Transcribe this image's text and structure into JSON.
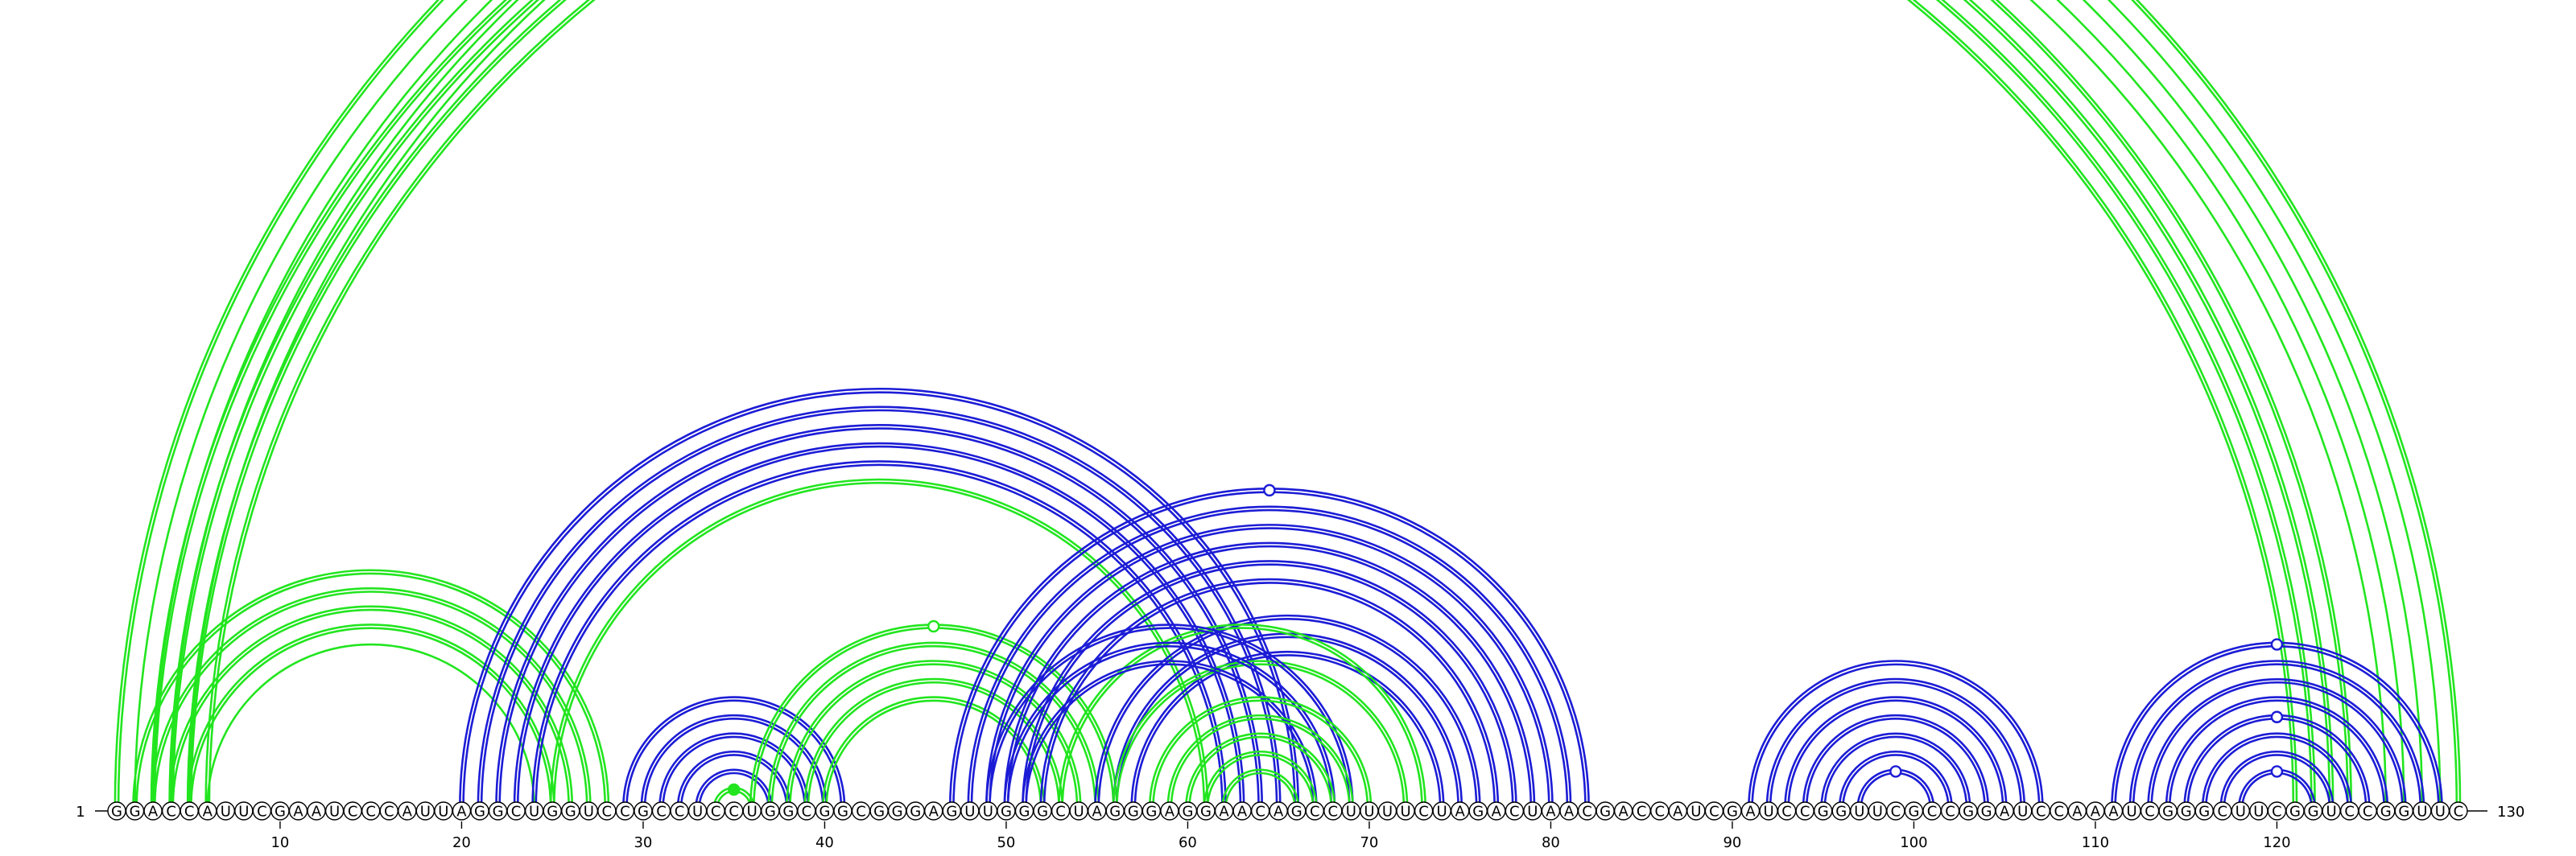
{
  "sequence": "GGACCAUUCGAAUCCCAUUAGGCUGGUCCGCCUCCUGGCGGCGGGAGUUGGGCUAGGGAGGAACAGCCUUUUCUAGACUAACGACCAUCGAUCCGGUUCGCCGGAUCCAAAUCGGGCUUCGGUCCGGUUC",
  "start_label": "1",
  "end_label": "130",
  "ticks": [
    "10",
    "20",
    "30",
    "40",
    "50",
    "60",
    "70",
    "80",
    "90",
    "100",
    "110",
    "120"
  ],
  "colors": {
    "green": "#22e51f",
    "blue": "#1c1cd6"
  },
  "arc_sets": [
    {
      "color": "green",
      "from": 1,
      "to": 130,
      "count": 2,
      "marker": "open"
    },
    {
      "color": "green",
      "from": 2,
      "to": 129,
      "count": 1
    },
    {
      "color": "green",
      "from": 3,
      "to": 128,
      "count": 1
    },
    {
      "color": "green",
      "from": 4,
      "to": 127,
      "count": 1
    },
    {
      "color": "green",
      "from": 5,
      "to": 126,
      "count": 1
    },
    {
      "color": "green",
      "from": 3,
      "to": 124,
      "count": 2
    },
    {
      "color": "green",
      "from": 4,
      "to": 123,
      "count": 2
    },
    {
      "color": "green",
      "from": 5,
      "to": 122,
      "count": 2
    },
    {
      "color": "green",
      "from": 6,
      "to": 121,
      "count": 2
    },
    {
      "color": "green",
      "from": 2,
      "to": 28,
      "count": 2
    },
    {
      "color": "green",
      "from": 3,
      "to": 27,
      "count": 2
    },
    {
      "color": "green",
      "from": 4,
      "to": 26,
      "count": 2
    },
    {
      "color": "green",
      "from": 5,
      "to": 25,
      "count": 2
    },
    {
      "color": "green",
      "from": 6,
      "to": 24,
      "count": 1
    },
    {
      "color": "blue",
      "from": 20,
      "to": 66,
      "count": 2
    },
    {
      "color": "blue",
      "from": 21,
      "to": 65,
      "count": 2
    },
    {
      "color": "blue",
      "from": 22,
      "to": 64,
      "count": 2
    },
    {
      "color": "blue",
      "from": 23,
      "to": 63,
      "count": 2
    },
    {
      "color": "blue",
      "from": 24,
      "to": 62,
      "count": 2
    },
    {
      "color": "green",
      "from": 25,
      "to": 61,
      "count": 2
    },
    {
      "color": "blue",
      "from": 29,
      "to": 41,
      "count": 2
    },
    {
      "color": "blue",
      "from": 30,
      "to": 40,
      "count": 2
    },
    {
      "color": "blue",
      "from": 31,
      "to": 39,
      "count": 2
    },
    {
      "color": "blue",
      "from": 32,
      "to": 38,
      "count": 2
    },
    {
      "color": "blue",
      "from": 33,
      "to": 37,
      "count": 2
    },
    {
      "color": "green",
      "from": 34,
      "to": 36,
      "count": 2,
      "marker": "filled"
    },
    {
      "color": "green",
      "from": 36,
      "to": 56,
      "count": 2,
      "marker": "open"
    },
    {
      "color": "green",
      "from": 37,
      "to": 55,
      "count": 2
    },
    {
      "color": "green",
      "from": 38,
      "to": 54,
      "count": 2
    },
    {
      "color": "green",
      "from": 39,
      "to": 53,
      "count": 2
    },
    {
      "color": "green",
      "from": 40,
      "to": 52,
      "count": 2
    },
    {
      "color": "blue",
      "from": 47,
      "to": 82,
      "count": 2,
      "marker": "open"
    },
    {
      "color": "blue",
      "from": 48,
      "to": 81,
      "count": 2
    },
    {
      "color": "blue",
      "from": 49,
      "to": 80,
      "count": 2
    },
    {
      "color": "blue",
      "from": 50,
      "to": 79,
      "count": 2
    },
    {
      "color": "blue",
      "from": 51,
      "to": 78,
      "count": 2
    },
    {
      "color": "blue",
      "from": 52,
      "to": 77,
      "count": 2
    },
    {
      "color": "blue",
      "from": 55,
      "to": 76,
      "count": 2
    },
    {
      "color": "blue",
      "from": 56,
      "to": 75,
      "count": 2
    },
    {
      "color": "blue",
      "from": 57,
      "to": 74,
      "count": 2
    },
    {
      "color": "green",
      "from": 53,
      "to": 73,
      "count": 2
    },
    {
      "color": "green",
      "from": 56,
      "to": 72,
      "count": 2
    },
    {
      "color": "blue",
      "from": 49,
      "to": 69,
      "count": 2
    },
    {
      "color": "blue",
      "from": 50,
      "to": 68,
      "count": 2
    },
    {
      "color": "blue",
      "from": 51,
      "to": 67,
      "count": 2
    },
    {
      "color": "green",
      "from": 58,
      "to": 70,
      "count": 2
    },
    {
      "color": "green",
      "from": 59,
      "to": 69,
      "count": 2
    },
    {
      "color": "green",
      "from": 60,
      "to": 68,
      "count": 2
    },
    {
      "color": "green",
      "from": 61,
      "to": 67,
      "count": 2
    },
    {
      "color": "green",
      "from": 62,
      "to": 66,
      "count": 2
    },
    {
      "color": "blue",
      "from": 91,
      "to": 107,
      "count": 2
    },
    {
      "color": "blue",
      "from": 92,
      "to": 106,
      "count": 2
    },
    {
      "color": "blue",
      "from": 93,
      "to": 105,
      "count": 2
    },
    {
      "color": "blue",
      "from": 94,
      "to": 104,
      "count": 2
    },
    {
      "color": "blue",
      "from": 95,
      "to": 103,
      "count": 2
    },
    {
      "color": "blue",
      "from": 96,
      "to": 102,
      "count": 2
    },
    {
      "color": "blue",
      "from": 97,
      "to": 101,
      "count": 2,
      "marker": "open"
    },
    {
      "color": "blue",
      "from": 111,
      "to": 129,
      "count": 2,
      "marker": "open"
    },
    {
      "color": "blue",
      "from": 112,
      "to": 128,
      "count": 2
    },
    {
      "color": "blue",
      "from": 113,
      "to": 127,
      "count": 2
    },
    {
      "color": "blue",
      "from": 114,
      "to": 126,
      "count": 2
    },
    {
      "color": "blue",
      "from": 115,
      "to": 125,
      "count": 2,
      "marker": "open"
    },
    {
      "color": "blue",
      "from": 116,
      "to": 124,
      "count": 2
    },
    {
      "color": "blue",
      "from": 117,
      "to": 123,
      "count": 2
    },
    {
      "color": "blue",
      "from": 118,
      "to": 122,
      "count": 2,
      "marker": "open"
    }
  ]
}
